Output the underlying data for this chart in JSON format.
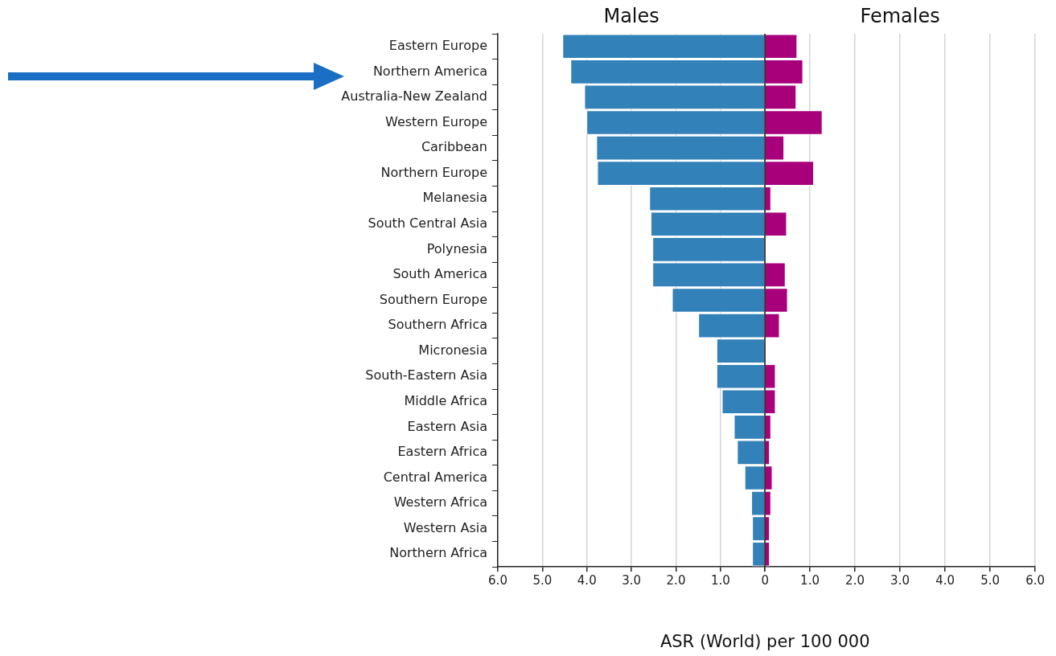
{
  "chart_data": [
    {
      "type": "bar",
      "orientation": "horizontal",
      "title": "Males",
      "categories": [
        "Eastern Europe",
        "Northern America",
        "Australia-New Zealand",
        "Western Europe",
        "Caribbean",
        "Northern Europe",
        "Melanesia",
        "South Central Asia",
        "Polynesia",
        "South America",
        "Southern Europe",
        "Southern Africa",
        "Micronesia",
        "South-Eastern Asia",
        "Middle Africa",
        "Eastern Asia",
        "Eastern Africa",
        "Central America",
        "Western Africa",
        "Western Asia",
        "Northern Africa"
      ],
      "series": [
        {
          "color": "#3381b9",
          "values": [
            4.55,
            4.37,
            4.06,
            4.01,
            3.79,
            3.77,
            2.6,
            2.57,
            2.53,
            2.53,
            2.09,
            1.5,
            1.09,
            1.09,
            0.97,
            0.7,
            0.63,
            0.46,
            0.31,
            0.29,
            0.29
          ]
        }
      ],
      "xlim": [
        6,
        0
      ],
      "xticks": [
        {
          "value": 6,
          "label": "6.0"
        },
        {
          "value": 5,
          "label": "5.0"
        },
        {
          "value": 4,
          "label": "4.0"
        },
        {
          "value": 3,
          "label": "3.0"
        },
        {
          "value": 2,
          "label": "2.0"
        },
        {
          "value": 1,
          "label": "1.0"
        },
        0
      ],
      "grid": "x"
    },
    {
      "type": "bar",
      "orientation": "horizontal",
      "title": "Females",
      "xlabel": "ASR (World) per 100 000",
      "categories": [
        null,
        null,
        null,
        null,
        null,
        null,
        null,
        null,
        null,
        null,
        null,
        null,
        null,
        null,
        null,
        null,
        null,
        null,
        null,
        null,
        null
      ],
      "series": [
        {
          "color": "#a8007b",
          "values": [
            0.72,
            0.85,
            0.7,
            1.28,
            0.43,
            1.09,
            0.14,
            0.49,
            0.01,
            0.46,
            0.51,
            0.33,
            0.01,
            0.24,
            0.24,
            0.14,
            0.11,
            0.17,
            0.14,
            0.11,
            0.11
          ]
        }
      ],
      "xlim": [
        0,
        6
      ],
      "xticks": [
        {
          "value": 0,
          "label": null
        },
        {
          "value": 1,
          "label": "1.0"
        },
        {
          "value": 2,
          "label": "2.0"
        },
        {
          "value": 3,
          "label": "3.0"
        },
        {
          "value": 4,
          "label": "4.0"
        },
        {
          "value": 5,
          "label": "5.0"
        },
        {
          "value": 6,
          "label": "6.0"
        }
      ],
      "grid": "x",
      "tick_labels": "x"
    }
  ]
}
